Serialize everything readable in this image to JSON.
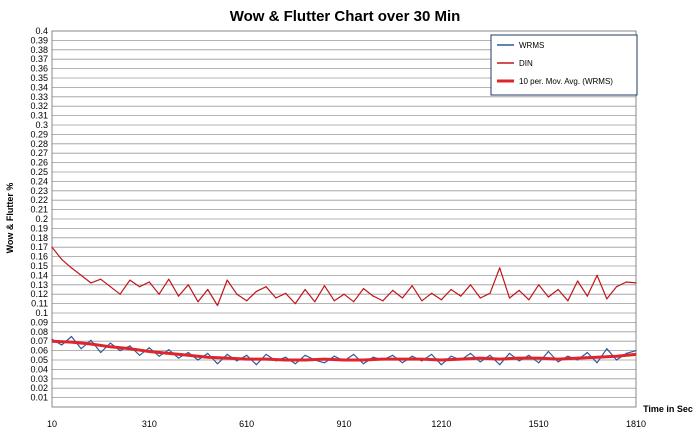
{
  "chart_data": {
    "type": "line",
    "title": "Wow & Flutter Chart over 30 Min",
    "xlabel": "Time in Sec",
    "ylabel": "Wow & Flutter %",
    "xlim": [
      10,
      1810
    ],
    "ylim": [
      0,
      0.4
    ],
    "x_ticks": [
      "10",
      "310",
      "610",
      "910",
      "1210",
      "1510",
      "1810"
    ],
    "y_ticks": [
      "0.01",
      "0.02",
      "0.03",
      "0.04",
      "0.05",
      "0.06",
      "0.07",
      "0.08",
      "0.09",
      "0.1",
      "0.11",
      "0.12",
      "0.13",
      "0.14",
      "0.15",
      "0.16",
      "0.17",
      "0.18",
      "0.19",
      "0.2",
      "0.21",
      "0.22",
      "0.23",
      "0.24",
      "0.25",
      "0.26",
      "0.27",
      "0.28",
      "0.29",
      "0.3",
      "0.31",
      "0.32",
      "0.33",
      "0.34",
      "0.35",
      "0.36",
      "0.37",
      "0.38",
      "0.39",
      "0.4"
    ],
    "grid": true,
    "legend_position": "top-right",
    "series": [
      {
        "name": "WRMS",
        "color": "#2e5c96",
        "x": [
          10,
          40,
          70,
          100,
          130,
          160,
          190,
          220,
          250,
          280,
          310,
          340,
          370,
          400,
          430,
          460,
          490,
          520,
          550,
          580,
          610,
          640,
          670,
          700,
          730,
          760,
          790,
          820,
          850,
          880,
          910,
          940,
          970,
          1000,
          1030,
          1060,
          1090,
          1120,
          1150,
          1180,
          1210,
          1240,
          1270,
          1300,
          1330,
          1360,
          1390,
          1420,
          1450,
          1480,
          1510,
          1540,
          1570,
          1600,
          1630,
          1660,
          1690,
          1720,
          1750,
          1780,
          1810
        ],
        "y": [
          0.072,
          0.066,
          0.075,
          0.062,
          0.071,
          0.058,
          0.068,
          0.06,
          0.065,
          0.055,
          0.063,
          0.054,
          0.061,
          0.052,
          0.058,
          0.05,
          0.057,
          0.046,
          0.056,
          0.049,
          0.055,
          0.045,
          0.056,
          0.049,
          0.053,
          0.046,
          0.055,
          0.05,
          0.047,
          0.054,
          0.049,
          0.056,
          0.046,
          0.053,
          0.05,
          0.055,
          0.047,
          0.054,
          0.049,
          0.056,
          0.045,
          0.054,
          0.05,
          0.057,
          0.048,
          0.055,
          0.045,
          0.057,
          0.049,
          0.055,
          0.047,
          0.059,
          0.048,
          0.054,
          0.05,
          0.058,
          0.047,
          0.062,
          0.05,
          0.057,
          0.06
        ]
      },
      {
        "name": "DIN",
        "color": "#c0161b",
        "x": [
          10,
          40,
          70,
          100,
          130,
          160,
          190,
          220,
          250,
          280,
          310,
          340,
          370,
          400,
          430,
          460,
          490,
          520,
          550,
          580,
          610,
          640,
          670,
          700,
          730,
          760,
          790,
          820,
          850,
          880,
          910,
          940,
          970,
          1000,
          1030,
          1060,
          1090,
          1120,
          1150,
          1180,
          1210,
          1240,
          1270,
          1300,
          1330,
          1360,
          1390,
          1420,
          1450,
          1480,
          1510,
          1540,
          1570,
          1600,
          1630,
          1660,
          1690,
          1720,
          1750,
          1780,
          1810
        ],
        "y": [
          0.17,
          0.157,
          0.148,
          0.14,
          0.132,
          0.136,
          0.128,
          0.12,
          0.135,
          0.128,
          0.133,
          0.12,
          0.136,
          0.118,
          0.13,
          0.112,
          0.125,
          0.108,
          0.135,
          0.12,
          0.113,
          0.123,
          0.128,
          0.116,
          0.121,
          0.11,
          0.125,
          0.112,
          0.129,
          0.113,
          0.12,
          0.112,
          0.126,
          0.118,
          0.113,
          0.124,
          0.116,
          0.129,
          0.113,
          0.121,
          0.114,
          0.125,
          0.118,
          0.13,
          0.116,
          0.121,
          0.148,
          0.116,
          0.124,
          0.114,
          0.13,
          0.117,
          0.125,
          0.113,
          0.134,
          0.118,
          0.14,
          0.115,
          0.128,
          0.133,
          0.132
        ]
      },
      {
        "name": "10 per. Mov. Avg. (WRMS)",
        "color": "#e0242e",
        "x": [
          10,
          70,
          130,
          190,
          250,
          310,
          370,
          430,
          490,
          550,
          610,
          670,
          730,
          790,
          850,
          910,
          970,
          1030,
          1090,
          1150,
          1210,
          1270,
          1330,
          1390,
          1450,
          1510,
          1570,
          1630,
          1690,
          1750,
          1810
        ],
        "y": [
          0.07,
          0.069,
          0.067,
          0.064,
          0.062,
          0.059,
          0.057,
          0.055,
          0.053,
          0.052,
          0.051,
          0.051,
          0.05,
          0.05,
          0.051,
          0.05,
          0.05,
          0.051,
          0.051,
          0.051,
          0.05,
          0.051,
          0.052,
          0.051,
          0.052,
          0.052,
          0.051,
          0.052,
          0.053,
          0.054,
          0.056
        ]
      }
    ]
  }
}
